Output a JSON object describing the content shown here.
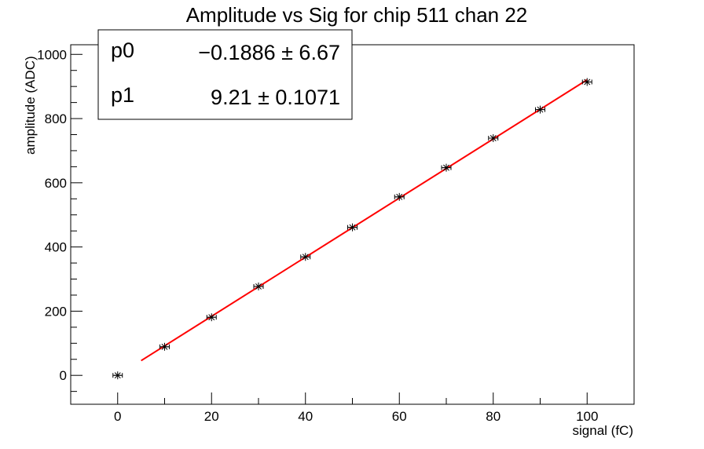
{
  "chart_data": {
    "type": "scatter",
    "title": "Amplitude vs Sig for chip 511 chan 22",
    "xlabel": "signal (fC)",
    "ylabel": "amplitude (ADC)",
    "xlim": [
      -10,
      110
    ],
    "ylim": [
      -90,
      1030
    ],
    "x_ticks": [
      0,
      20,
      40,
      60,
      80,
      100
    ],
    "y_ticks": [
      0,
      200,
      400,
      600,
      800,
      1000
    ],
    "grid": false,
    "series": [
      {
        "marker": "star",
        "color": "#000000",
        "x": [
          0,
          10,
          20,
          30,
          40,
          50,
          60,
          70,
          80,
          90,
          100
        ],
        "y": [
          0,
          89,
          181,
          277,
          369,
          461,
          556,
          647,
          739,
          828,
          914
        ],
        "x_error": 1
      }
    ],
    "fit": {
      "color": "#ff0000",
      "x_range": [
        5,
        100
      ],
      "p0": -0.1886,
      "p1": 9.21
    },
    "stats_box": {
      "position": "top-left",
      "rows": [
        {
          "name": "p0",
          "value": "−0.1886 ±  6.67"
        },
        {
          "name": "p1",
          "value": "9.21 ± 0.1071"
        }
      ]
    }
  }
}
